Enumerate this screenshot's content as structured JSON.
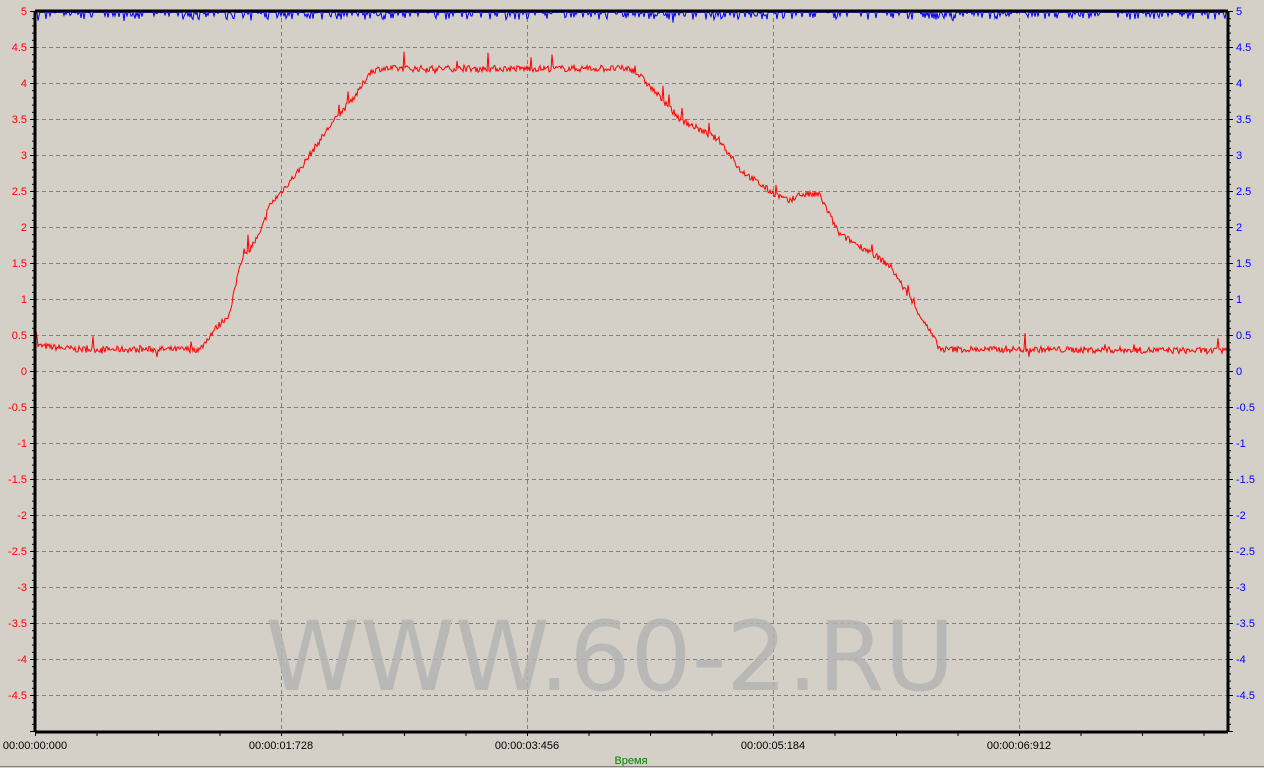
{
  "chart_data": {
    "type": "line",
    "title": "",
    "xlabel": "Время",
    "ylabel": "",
    "xlim_seconds": [
      0,
      8.38
    ],
    "ylim": [
      -5,
      5
    ],
    "grid": true,
    "x_tick_labels": [
      "00:00:00:000",
      "00:00:01:728",
      "00:00:03:456",
      "00:00:05:184",
      "00:00:06:912"
    ],
    "x_tick_values_seconds": [
      0,
      1.728,
      3.456,
      5.184,
      6.912
    ],
    "y_ticks": [
      5,
      4.5,
      4,
      3.5,
      3,
      2.5,
      2,
      1.5,
      1,
      0.5,
      0,
      -0.5,
      -1,
      -1.5,
      -2,
      -2.5,
      -3,
      -3.5,
      -4,
      -4.5
    ],
    "left_axis_color": "#ff0000",
    "right_axis_color": "#0000ff",
    "xlabel_color": "#008000",
    "background": "#d4d0c8",
    "series": [
      {
        "color": "#ff0000",
        "x": [
          0,
          0.02,
          0.3,
          0.8,
          1.16,
          1.25,
          1.37,
          1.44,
          1.58,
          1.65,
          1.86,
          2.07,
          2.28,
          2.35,
          2.42,
          3.0,
          3.5,
          4.18,
          4.25,
          4.53,
          4.81,
          4.95,
          5.16,
          5.3,
          5.37,
          5.51,
          5.65,
          5.87,
          6.01,
          6.15,
          6.36,
          7.0,
          8.38
        ],
        "y": [
          0.7,
          0.35,
          0.3,
          0.3,
          0.3,
          0.55,
          0.8,
          1.5,
          1.9,
          2.3,
          2.8,
          3.4,
          3.9,
          4.15,
          4.2,
          4.2,
          4.2,
          4.2,
          4.1,
          3.5,
          3.2,
          2.8,
          2.5,
          2.35,
          2.45,
          2.45,
          1.9,
          1.65,
          1.45,
          1.0,
          0.3,
          0.3,
          0.28
        ]
      },
      {
        "color": "#0000ff",
        "x": [
          0,
          8.38
        ],
        "y": [
          4.97,
          4.97
        ]
      }
    ]
  },
  "watermark": "WWW.60-2.RU"
}
